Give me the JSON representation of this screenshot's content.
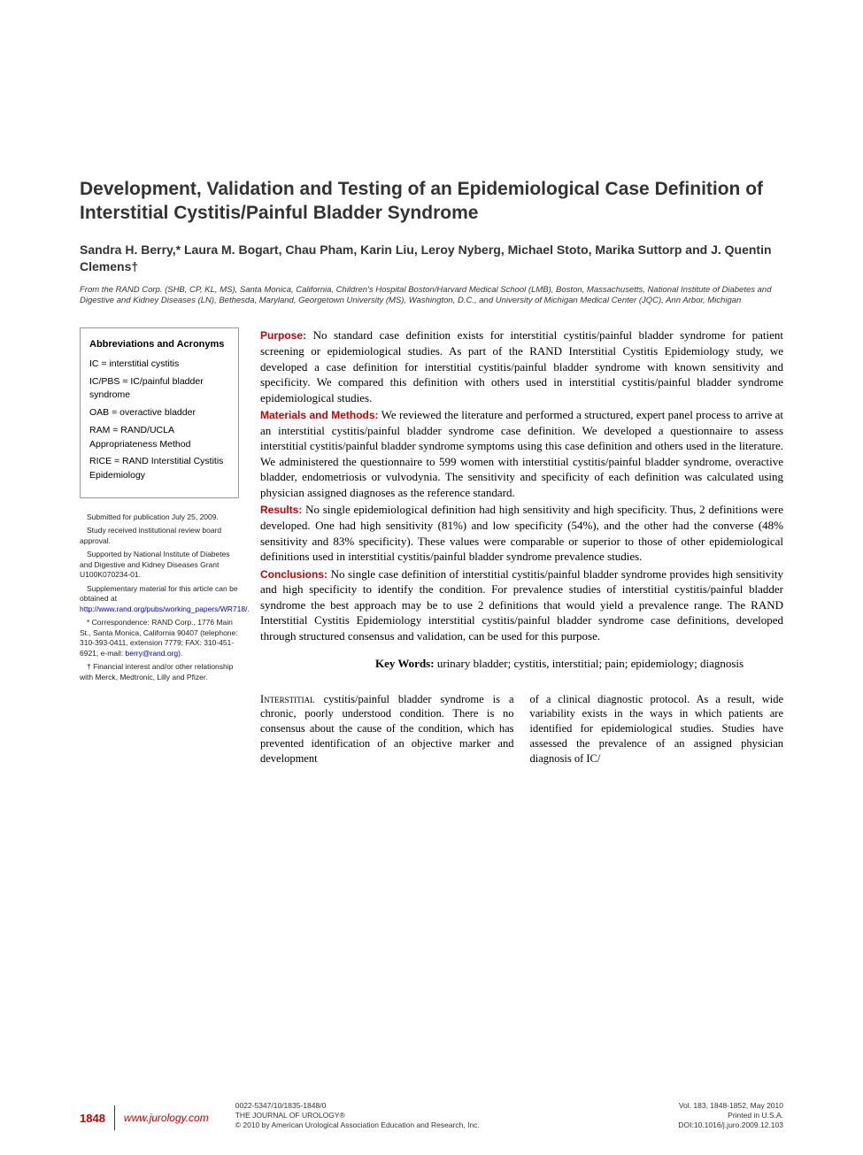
{
  "title": "Development, Validation and Testing of an Epidemiological Case Definition of Interstitial Cystitis/Painful Bladder Syndrome",
  "authors": "Sandra H. Berry,* Laura M. Bogart, Chau Pham, Karin Liu, Leroy Nyberg, Michael Stoto, Marika Suttorp and J. Quentin Clemens†",
  "affiliations": "From the RAND Corp. (SHB, CP, KL, MS), Santa Monica, California, Children's Hospital Boston/Harvard Medical School (LMB), Boston, Massachusetts, National Institute of Diabetes and Digestive and Kidney Diseases (LN), Bethesda, Maryland, Georgetown University (MS), Washington, D.C., and University of Michigan Medical Center (JQC), Ann Arbor, Michigan",
  "abbrev": {
    "heading": "Abbreviations and Acronyms",
    "items": [
      "IC = interstitial cystitis",
      "IC/PBS = IC/painful bladder syndrome",
      "OAB = overactive bladder",
      "RAM = RAND/UCLA Appropriateness Method",
      "RICE = RAND Interstitial Cystitis Epidemiology"
    ]
  },
  "footnotes": {
    "submitted": "Submitted for publication July 25, 2009.",
    "irb": "Study received institutional review board approval.",
    "support": "Supported by National Institute of Diabetes and Digestive and Kidney Diseases Grant U100K070234-01.",
    "supplementary_prefix": "Supplementary material for this article can be obtained at ",
    "supplementary_link": "http://www.rand.org/pubs/working_papers/WR718/",
    "supplementary_suffix": ".",
    "correspondence_prefix": "* Correspondence: RAND Corp., 1776 Main St., Santa Monica, California 90407 (telephone: 310-393-0411, extension 7779; FAX: 310-451-6921; e-mail: ",
    "correspondence_email": "berry@rand.org",
    "correspondence_suffix": ").",
    "coi": "† Financial interest and/or other relationship with Merck, Medtronic, Lilly and Pfizer."
  },
  "abstract": {
    "purpose_label": "Purpose:",
    "purpose": " No standard case definition exists for interstitial cystitis/painful bladder syndrome for patient screening or epidemiological studies. As part of the RAND Interstitial Cystitis Epidemiology study, we developed a case definition for interstitial cystitis/painful bladder syndrome with known sensitivity and specificity. We compared this definition with others used in interstitial cystitis/painful bladder syndrome epidemiological studies.",
    "methods_label": "Materials and Methods:",
    "methods": " We reviewed the literature and performed a structured, expert panel process to arrive at an interstitial cystitis/painful bladder syndrome case definition. We developed a questionnaire to assess interstitial cystitis/painful bladder syndrome symptoms using this case definition and others used in the literature. We administered the questionnaire to 599 women with interstitial cystitis/painful bladder syndrome, overactive bladder, endometriosis or vulvodynia. The sensitivity and specificity of each definition was calculated using physician assigned diagnoses as the reference standard.",
    "results_label": "Results:",
    "results": " No single epidemiological definition had high sensitivity and high specificity. Thus, 2 definitions were developed. One had high sensitivity (81%) and low specificity (54%), and the other had the converse (48% sensitivity and 83% specificity). These values were comparable or superior to those of other epidemiological definitions used in interstitial cystitis/painful bladder syndrome prevalence studies.",
    "conclusions_label": "Conclusions:",
    "conclusions": " No single case definition of interstitial cystitis/painful bladder syndrome provides high sensitivity and high specificity to identify the condition. For prevalence studies of interstitial cystitis/painful bladder syndrome the best approach may be to use 2 definitions that would yield a prevalence range. The RAND Interstitial Cystitis Epidemiology interstitial cystitis/painful bladder syndrome case definitions, developed through structured consensus and validation, can be used for this purpose."
  },
  "keywords": {
    "label": "Key Words:",
    "text": " urinary bladder; cystitis, interstitial; pain; epidemiology; diagnosis"
  },
  "body": {
    "col1": "Interstitial cystitis/painful bladder syndrome is a chronic, poorly understood condition. There is no consensus about the cause of the condition, which has prevented identification of an objective marker and development",
    "col1_smallcaps": "Interstitial",
    "col1_rest": " cystitis/painful bladder syndrome is a chronic, poorly understood condition. There is no consensus about the cause of the condition, which has prevented identification of an objective marker and development",
    "col2": "of a clinical diagnostic protocol. As a result, wide variability exists in the ways in which patients are identified for epidemiological studies. Studies have assessed the prevalence of an assigned physician diagnosis of IC/"
  },
  "footer": {
    "page_number": "1848",
    "journal_url": "www.jurology.com",
    "issn": "0022-5347/10/1835-1848/0",
    "journal_name": "THE JOURNAL OF UROLOGY®",
    "copyright": "© 2010 by American Urological Association Education and Research, Inc.",
    "vol_issue": "Vol. 183, 1848-1852, May 2010",
    "printed": "Printed in U.S.A.",
    "doi": "DOI:10.1016/j.juro.2009.12.103"
  },
  "colors": {
    "accent_red": "#cc0000",
    "link_blue": "#0000cc",
    "text": "#000000",
    "heading_gray": "#333333",
    "box_border": "#999999",
    "background": "#ffffff"
  },
  "typography": {
    "title_fontsize": 21,
    "authors_fontsize": 14,
    "affiliations_fontsize": 9.5,
    "abstract_fontsize": 13,
    "body_fontsize": 12.5,
    "sidebar_fontsize": 10.5,
    "footnote_fontsize": 8.5,
    "footer_fontsize": 8.5
  }
}
